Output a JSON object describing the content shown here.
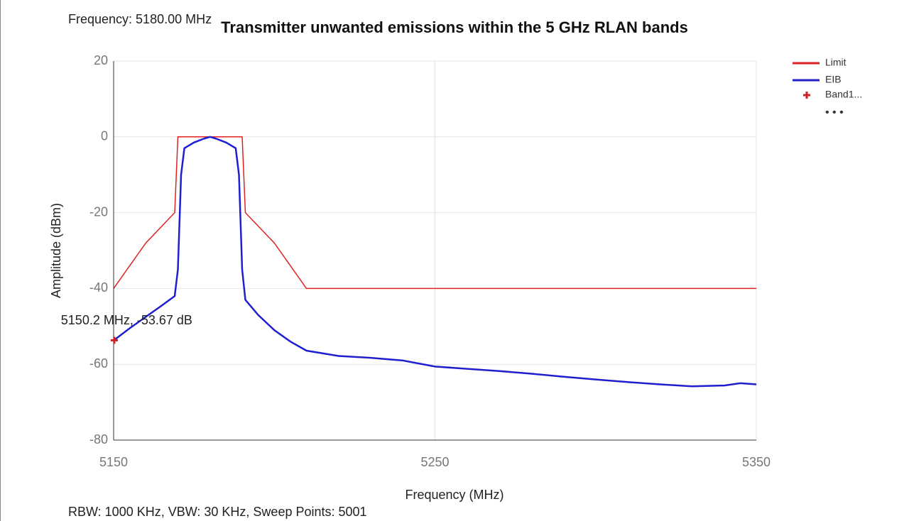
{
  "chart_data": {
    "type": "line",
    "header": "Frequency: 5180.00 MHz",
    "title": "Transmitter unwanted emissions within the 5 GHz RLAN bands",
    "xlabel": "Frequency (MHz)",
    "ylabel": "Amplitude (dBm)",
    "footer": "RBW: 1000 KHz,  VBW: 30 KHz,  Sweep Points: 5001",
    "xlim": [
      5150,
      5350
    ],
    "xticks": [
      5150,
      5250,
      5350
    ],
    "ylim": [
      -80,
      20
    ],
    "yticks": [
      -80,
      -60,
      -40,
      -20,
      0,
      20
    ],
    "grid": true,
    "legend": "right",
    "legend_more": "• • •",
    "series": [
      {
        "name": "Limit",
        "color": "#e02020",
        "x": [
          5150,
          5160,
          5169,
          5170,
          5190,
          5191,
          5200,
          5210,
          5350
        ],
        "values": [
          -40,
          -28,
          -20,
          0,
          0,
          -20,
          -28,
          -40,
          -40
        ]
      },
      {
        "name": "EIB",
        "color": "#1f1fd0",
        "x": [
          5150,
          5155,
          5160,
          5165,
          5169,
          5170,
          5171,
          5172,
          5175,
          5178,
          5180,
          5182,
          5185,
          5188,
          5189,
          5190,
          5191,
          5195,
          5200,
          5205,
          5210,
          5220,
          5230,
          5240,
          5250,
          5260,
          5270,
          5280,
          5290,
          5300,
          5310,
          5320,
          5330,
          5340,
          5345,
          5350
        ],
        "values": [
          -53.7,
          -50.5,
          -47.5,
          -44.5,
          -42,
          -35,
          -10,
          -3,
          -1.5,
          -0.5,
          0,
          -0.5,
          -1.5,
          -3,
          -10,
          -35,
          -43,
          -47,
          -51,
          -54,
          -56.4,
          -57.8,
          -58.3,
          -59,
          -60.6,
          -61.2,
          -61.8,
          -62.5,
          -63.3,
          -64,
          -64.7,
          -65.3,
          -65.8,
          -65.6,
          -65,
          -65.3
        ]
      }
    ],
    "markers": [
      {
        "name": "Band1...",
        "color": "#d02020",
        "x": 5150.2,
        "y": -53.67,
        "label": "5150.2 MHz, -53.67 dB"
      }
    ]
  }
}
